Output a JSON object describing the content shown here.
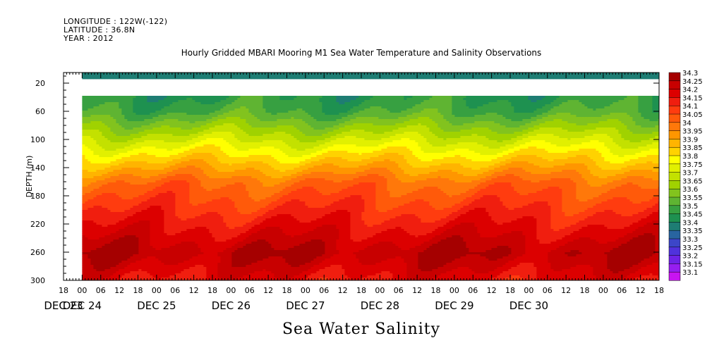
{
  "header": {
    "longitude": "LONGITUDE : 122W(-122)",
    "latitude": "LATITUDE : 36.8N",
    "year": "YEAR : 2012"
  },
  "chart_data": {
    "type": "heatmap",
    "title": "Hourly Gridded MBARI Mooring M1 Sea Water Temperature and Salinity Observations",
    "bottom_title": "Sea Water Salinity",
    "ylabel": "DEPTH (m)",
    "y_ticks": [
      20,
      60,
      100,
      140,
      180,
      220,
      260,
      300
    ],
    "ylim": [
      300,
      5
    ],
    "x_hour_ticks": [
      "18",
      "00",
      "06",
      "12",
      "18",
      "00",
      "06",
      "12",
      "18",
      "00",
      "06",
      "12",
      "18",
      "00",
      "06",
      "12",
      "18",
      "00",
      "06",
      "12",
      "18",
      "00",
      "06",
      "12",
      "18",
      "00",
      "06",
      "12",
      "18",
      "00",
      "06",
      "12",
      "18"
    ],
    "x_date_labels": [
      "DEC 23",
      "DEC 24",
      "DEC 25",
      "DEC 26",
      "DEC 27",
      "DEC 28",
      "DEC 29",
      "DEC 30"
    ],
    "x_range_hours": [
      "DEC 23 18",
      "DEC 30 18"
    ],
    "colorbar_levels": [
      "34.3",
      "34.25",
      "34.2",
      "34.15",
      "34.1",
      "34.05",
      "34",
      "33.95",
      "33.9",
      "33.85",
      "33.8",
      "33.75",
      "33.7",
      "33.65",
      "33.6",
      "33.55",
      "33.5",
      "33.45",
      "33.4",
      "33.35",
      "33.3",
      "33.25",
      "33.2",
      "33.15",
      "33.1"
    ],
    "colorbar_colors": [
      "#a50000",
      "#c80000",
      "#dc0000",
      "#f01e0f",
      "#ff3c0f",
      "#ff5a0a",
      "#ff780a",
      "#ff9600",
      "#ffb400",
      "#ffd200",
      "#ffff00",
      "#e1f000",
      "#c3e100",
      "#a0d200",
      "#82c31e",
      "#5fb432",
      "#37a041",
      "#1e9150",
      "#1e7d73",
      "#2864a0",
      "#3c46c8",
      "#5032dc",
      "#6e23e6",
      "#961ef0",
      "#c814f0"
    ],
    "depth_profile": {
      "depths_m": [
        40,
        60,
        80,
        100,
        120,
        140,
        160,
        180,
        200,
        220,
        240,
        260,
        280,
        300
      ],
      "typical_salinity": [
        33.45,
        33.5,
        33.6,
        33.7,
        33.8,
        33.9,
        34.0,
        34.05,
        34.1,
        34.15,
        34.2,
        34.25,
        34.2,
        34.15
      ]
    },
    "near_surface_salinity": 33.35,
    "data_gap_depth_m": [
      13,
      38
    ]
  }
}
